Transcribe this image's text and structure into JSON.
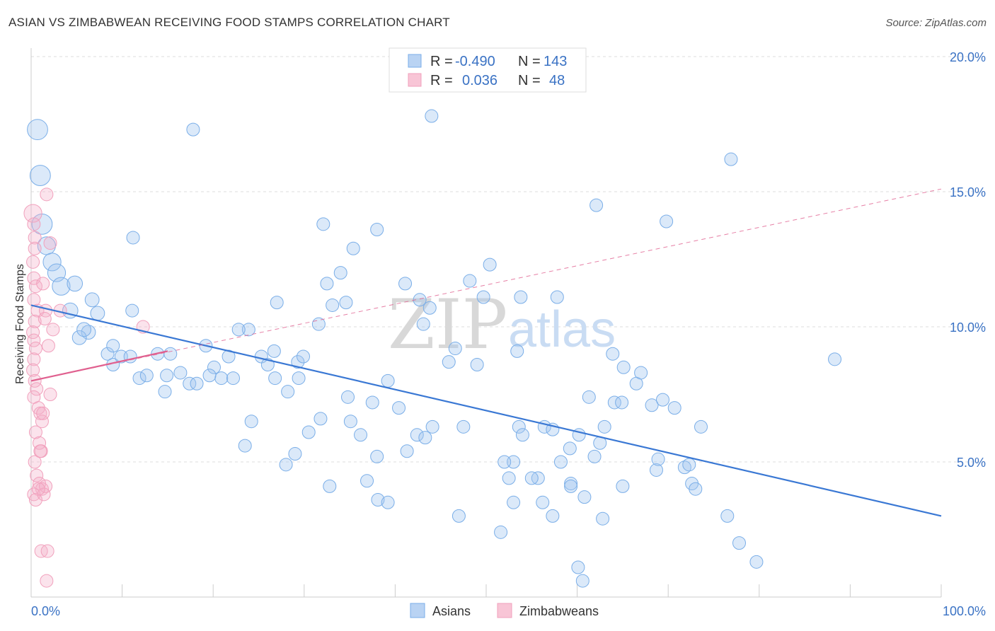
{
  "title": "ASIAN VS ZIMBABWEAN RECEIVING FOOD STAMPS CORRELATION CHART",
  "source": "Source: ZipAtlas.com",
  "chart_data": {
    "type": "scatter",
    "ylabel": "Receiving Food Stamps",
    "xlim": [
      0,
      100
    ],
    "ylim": [
      0,
      20
    ],
    "x_tick_labels": [
      "0.0%",
      "100.0%"
    ],
    "y_ticks": [
      5,
      10,
      15,
      20
    ],
    "y_tick_labels": [
      "5.0%",
      "10.0%",
      "15.0%",
      "20.0%"
    ],
    "grid": true,
    "legend": [
      {
        "r_label": "R =",
        "r_value": "-0.490",
        "n_label": "N =",
        "n_value": "143"
      },
      {
        "r_label": "R =",
        "r_value": "0.036",
        "n_label": "N =",
        "n_value": "48"
      }
    ],
    "watermark": {
      "zip": "ZIP",
      "atlas": "atlas"
    },
    "series": [
      {
        "name": "Asians",
        "color": "#7aaee8",
        "line_color": "#3a78d4",
        "trend": {
          "x": [
            0,
            100
          ],
          "y": [
            10.8,
            3.0
          ]
        },
        "points": [
          [
            0.7,
            17.3,
            16
          ],
          [
            1.0,
            15.6,
            16
          ],
          [
            1.2,
            13.8,
            16
          ],
          [
            1.7,
            13.0,
            14
          ],
          [
            2.3,
            12.4,
            14
          ],
          [
            2.8,
            12.0,
            14
          ],
          [
            3.3,
            11.5,
            14
          ],
          [
            4.8,
            11.6,
            12
          ],
          [
            4.3,
            10.6,
            12
          ],
          [
            6.7,
            11.0,
            11
          ],
          [
            7.3,
            10.5,
            11
          ],
          [
            6.3,
            9.8,
            11
          ],
          [
            5.3,
            9.6,
            11
          ],
          [
            5.8,
            9.9,
            11
          ],
          [
            8.4,
            9.0,
            10
          ],
          [
            9.0,
            8.6,
            10
          ],
          [
            9.9,
            8.9,
            10
          ],
          [
            10.9,
            8.9,
            10
          ],
          [
            9.0,
            9.3,
            10
          ],
          [
            11.9,
            8.1,
            10
          ],
          [
            12.7,
            8.2,
            10
          ],
          [
            13.9,
            9.0,
            10
          ],
          [
            14.9,
            8.2,
            10
          ],
          [
            16.4,
            8.3,
            10
          ],
          [
            17.4,
            7.9,
            10
          ],
          [
            18.2,
            7.9,
            10
          ],
          [
            19.2,
            9.3,
            10
          ],
          [
            20.1,
            8.5,
            10
          ],
          [
            20.9,
            8.1,
            10
          ],
          [
            22.2,
            8.1,
            10
          ],
          [
            21.7,
            8.9,
            10
          ],
          [
            23.9,
            9.9,
            10
          ],
          [
            22.8,
            9.9,
            10
          ],
          [
            25.3,
            8.9,
            10
          ],
          [
            26.0,
            8.6,
            10
          ],
          [
            26.8,
            8.1,
            10
          ],
          [
            28.2,
            7.6,
            10
          ],
          [
            29.3,
            8.7,
            10
          ],
          [
            29.9,
            8.9,
            10
          ],
          [
            31.6,
            10.1,
            10
          ],
          [
            32.5,
            11.6,
            10
          ],
          [
            33.1,
            10.8,
            10
          ],
          [
            34.0,
            12.0,
            10
          ],
          [
            27.0,
            10.9,
            10
          ],
          [
            29.0,
            5.3,
            10
          ],
          [
            30.5,
            6.1,
            10
          ],
          [
            31.8,
            6.6,
            10
          ],
          [
            35.1,
            6.5,
            10
          ],
          [
            36.2,
            6.0,
            10
          ],
          [
            34.8,
            7.4,
            10
          ],
          [
            37.5,
            7.2,
            10
          ],
          [
            38.0,
            5.2,
            10
          ],
          [
            36.9,
            4.3,
            10
          ],
          [
            38.1,
            3.6,
            10
          ],
          [
            39.2,
            8.0,
            10
          ],
          [
            40.4,
            7.0,
            10
          ],
          [
            41.3,
            5.4,
            10
          ],
          [
            42.4,
            6.0,
            10
          ],
          [
            43.3,
            5.9,
            10
          ],
          [
            44.1,
            6.3,
            10
          ],
          [
            41.1,
            11.6,
            10
          ],
          [
            42.7,
            11.0,
            10
          ],
          [
            43.1,
            10.1,
            10
          ],
          [
            43.8,
            10.7,
            10
          ],
          [
            45.9,
            8.7,
            10
          ],
          [
            46.6,
            9.2,
            10
          ],
          [
            47.5,
            6.3,
            10
          ],
          [
            48.2,
            11.7,
            10
          ],
          [
            49.0,
            8.6,
            10
          ],
          [
            50.4,
            12.3,
            10
          ],
          [
            49.7,
            11.1,
            10
          ],
          [
            53.0,
            5.0,
            10
          ],
          [
            53.6,
            6.3,
            10
          ],
          [
            53.4,
            9.1,
            10
          ],
          [
            54.0,
            6.0,
            10
          ],
          [
            56.4,
            6.3,
            10
          ],
          [
            57.3,
            6.2,
            10
          ],
          [
            59.2,
            5.5,
            10
          ],
          [
            60.2,
            6.0,
            10
          ],
          [
            57.8,
            11.1,
            10
          ],
          [
            53.8,
            11.1,
            10
          ],
          [
            52.0,
            5.0,
            10
          ],
          [
            52.5,
            4.4,
            10
          ],
          [
            55.7,
            4.4,
            10
          ],
          [
            53.0,
            3.5,
            10
          ],
          [
            55.0,
            4.4,
            10
          ],
          [
            51.6,
            2.4,
            10
          ],
          [
            56.2,
            3.5,
            10
          ],
          [
            58.2,
            5.0,
            10
          ],
          [
            59.3,
            4.2,
            10
          ],
          [
            60.8,
            3.7,
            10
          ],
          [
            61.9,
            5.2,
            10
          ],
          [
            62.5,
            5.7,
            10
          ],
          [
            63.0,
            6.3,
            10
          ],
          [
            64.1,
            7.2,
            10
          ],
          [
            64.9,
            7.2,
            10
          ],
          [
            61.3,
            7.4,
            10
          ],
          [
            62.8,
            2.9,
            10
          ],
          [
            57.3,
            3.0,
            10
          ],
          [
            59.3,
            4.1,
            10
          ],
          [
            60.1,
            1.1,
            10
          ],
          [
            60.6,
            0.6,
            10
          ],
          [
            63.9,
            9.0,
            10
          ],
          [
            65.1,
            8.5,
            10
          ],
          [
            66.5,
            7.9,
            10
          ],
          [
            67.0,
            8.3,
            10
          ],
          [
            68.2,
            7.1,
            10
          ],
          [
            68.7,
            4.7,
            10
          ],
          [
            68.9,
            5.1,
            10
          ],
          [
            69.4,
            7.3,
            10
          ],
          [
            69.8,
            13.9,
            10
          ],
          [
            71.8,
            4.8,
            10
          ],
          [
            72.3,
            4.9,
            10
          ],
          [
            72.6,
            4.2,
            10
          ],
          [
            73.0,
            4.0,
            10
          ],
          [
            73.6,
            6.3,
            10
          ],
          [
            76.5,
            3.0,
            10
          ],
          [
            76.9,
            16.2,
            10
          ],
          [
            77.8,
            2.0,
            10
          ],
          [
            79.7,
            1.3,
            10
          ],
          [
            88.3,
            8.8,
            10
          ],
          [
            70.7,
            7.0,
            10
          ],
          [
            65.0,
            4.1,
            10
          ],
          [
            62.1,
            14.5,
            10
          ],
          [
            47.0,
            3.0,
            10
          ],
          [
            44.0,
            17.8,
            10
          ],
          [
            38.0,
            13.6,
            10
          ],
          [
            24.2,
            6.5,
            10
          ],
          [
            28.0,
            4.9,
            10
          ],
          [
            23.5,
            5.6,
            10
          ],
          [
            17.8,
            17.3,
            10
          ],
          [
            15.3,
            9.0,
            10
          ],
          [
            11.1,
            10.6,
            10
          ],
          [
            11.2,
            13.3,
            10
          ],
          [
            14.7,
            7.6,
            10
          ],
          [
            19.6,
            8.2,
            10
          ],
          [
            34.6,
            10.9,
            10
          ],
          [
            35.4,
            12.9,
            10
          ],
          [
            26.7,
            9.1,
            10
          ],
          [
            29.4,
            8.1,
            10
          ],
          [
            32.8,
            4.1,
            10
          ],
          [
            39.2,
            3.5,
            10
          ],
          [
            32.1,
            13.8,
            10
          ]
        ]
      },
      {
        "name": "Zimbabweans",
        "color": "#f1a0bc",
        "line_color": "#e0608f",
        "trend_solid": {
          "x": [
            0,
            15
          ],
          "y": [
            8.0,
            9.1
          ]
        },
        "trend_dashed": {
          "x": [
            0,
            100
          ],
          "y": [
            8.0,
            15.1
          ]
        },
        "points": [
          [
            0.2,
            14.2,
            14
          ],
          [
            0.3,
            13.8,
            10
          ],
          [
            0.4,
            13.3,
            10
          ],
          [
            0.4,
            12.9,
            10
          ],
          [
            0.2,
            12.4,
            10
          ],
          [
            0.3,
            11.8,
            10
          ],
          [
            0.5,
            11.5,
            10
          ],
          [
            0.3,
            11.0,
            10
          ],
          [
            0.7,
            10.6,
            10
          ],
          [
            0.4,
            10.2,
            10
          ],
          [
            0.2,
            9.8,
            10
          ],
          [
            0.3,
            9.5,
            10
          ],
          [
            0.5,
            9.2,
            10
          ],
          [
            0.3,
            8.8,
            10
          ],
          [
            0.2,
            8.4,
            10
          ],
          [
            0.4,
            8.0,
            10
          ],
          [
            0.6,
            7.7,
            10
          ],
          [
            0.3,
            7.4,
            10
          ],
          [
            0.8,
            7.0,
            10
          ],
          [
            1.0,
            6.8,
            10
          ],
          [
            1.2,
            6.5,
            10
          ],
          [
            0.5,
            6.1,
            10
          ],
          [
            0.9,
            5.7,
            10
          ],
          [
            1.1,
            5.4,
            10
          ],
          [
            0.4,
            5.0,
            10
          ],
          [
            0.6,
            4.5,
            10
          ],
          [
            0.9,
            4.2,
            10
          ],
          [
            1.2,
            4.0,
            10
          ],
          [
            0.3,
            3.8,
            10
          ],
          [
            0.5,
            3.6,
            10
          ],
          [
            1.6,
            4.1,
            10
          ],
          [
            1.4,
            3.8,
            10
          ],
          [
            1.1,
            1.7,
            10
          ],
          [
            1.8,
            1.7,
            10
          ],
          [
            1.7,
            0.6,
            10
          ],
          [
            1.7,
            14.9,
            10
          ],
          [
            2.1,
            13.1,
            10
          ],
          [
            1.3,
            11.6,
            10
          ],
          [
            1.6,
            10.6,
            10
          ],
          [
            1.5,
            10.3,
            10
          ],
          [
            1.9,
            9.3,
            10
          ],
          [
            2.4,
            9.9,
            10
          ],
          [
            2.1,
            7.5,
            10
          ],
          [
            1.3,
            6.8,
            10
          ],
          [
            0.8,
            4.0,
            10
          ],
          [
            1.0,
            5.4,
            10
          ],
          [
            12.3,
            10.0,
            10
          ],
          [
            3.2,
            10.6,
            10
          ]
        ]
      }
    ]
  }
}
